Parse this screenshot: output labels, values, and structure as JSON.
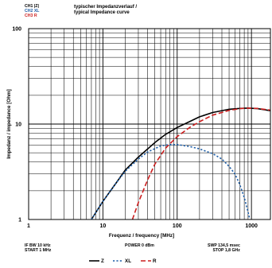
{
  "header": {
    "channels": [
      {
        "label": "CH1 |Z|",
        "color": "#000000"
      },
      {
        "label": "CH2 XL",
        "color": "#1f5fa8"
      },
      {
        "label": "CH3 R",
        "color": "#cc1f1f"
      }
    ],
    "title_line1": "typischer Impedanzverlauf /",
    "title_line2": "typical Impedance curve"
  },
  "footer": {
    "if_bw": "IF BW 10 kHz",
    "start": "START 1 MHz",
    "power": "POWER 0 dBm",
    "swp": "SWP 134,5 msec",
    "stop": "STOP 1,8 GHz"
  },
  "legend": [
    {
      "label": "Z",
      "color": "#000000",
      "style": "solid"
    },
    {
      "label": "XL",
      "color": "#1f5fa8",
      "style": "dotted"
    },
    {
      "label": "R",
      "color": "#cc1f1f",
      "style": "dashed"
    }
  ],
  "chart_data": {
    "type": "line",
    "title": "typischer Impedanzverlauf / typical Impedance curve",
    "xlabel": "Frequenz / frequency [MHz]",
    "ylabel": "Impedanz / impedance [Ohm]",
    "x_scale": "log",
    "y_scale": "log",
    "xlim": [
      1,
      1800
    ],
    "ylim": [
      1,
      100
    ],
    "x_ticks": [
      "1",
      "10",
      "100",
      "1000"
    ],
    "y_ticks": [
      "1",
      "10",
      "100"
    ],
    "grid": true,
    "series": [
      {
        "name": "Z",
        "color": "#000000",
        "style": "solid",
        "points": [
          [
            7,
            1
          ],
          [
            10,
            1.55
          ],
          [
            15,
            2.4
          ],
          [
            20,
            3.3
          ],
          [
            30,
            4.5
          ],
          [
            50,
            6.4
          ],
          [
            70,
            7.8
          ],
          [
            100,
            9.2
          ],
          [
            150,
            10.7
          ],
          [
            200,
            11.9
          ],
          [
            300,
            13.2
          ],
          [
            500,
            14.3
          ],
          [
            700,
            14.6
          ],
          [
            900,
            14.7
          ],
          [
            1200,
            14.5
          ],
          [
            1800,
            13.8
          ]
        ]
      },
      {
        "name": "XL",
        "color": "#1f5fa8",
        "style": "dotted",
        "points": [
          [
            7,
            1
          ],
          [
            10,
            1.55
          ],
          [
            15,
            2.4
          ],
          [
            20,
            3.2
          ],
          [
            30,
            4.3
          ],
          [
            40,
            5.1
          ],
          [
            60,
            5.9
          ],
          [
            80,
            6.1
          ],
          [
            100,
            6.1
          ],
          [
            150,
            5.8
          ],
          [
            200,
            5.5
          ],
          [
            300,
            4.9
          ],
          [
            400,
            4.3
          ],
          [
            500,
            3.6
          ],
          [
            600,
            3.0
          ],
          [
            700,
            2.3
          ],
          [
            800,
            1.7
          ],
          [
            900,
            1.2
          ],
          [
            950,
            1.0
          ]
        ]
      },
      {
        "name": "R",
        "color": "#cc1f1f",
        "style": "dashed",
        "points": [
          [
            25,
            1
          ],
          [
            30,
            1.5
          ],
          [
            40,
            2.6
          ],
          [
            50,
            3.8
          ],
          [
            70,
            5.6
          ],
          [
            100,
            7.4
          ],
          [
            150,
            9.3
          ],
          [
            200,
            10.6
          ],
          [
            300,
            12.4
          ],
          [
            500,
            13.9
          ],
          [
            700,
            14.5
          ],
          [
            900,
            14.7
          ],
          [
            1200,
            14.6
          ],
          [
            1800,
            14.0
          ]
        ]
      }
    ]
  }
}
